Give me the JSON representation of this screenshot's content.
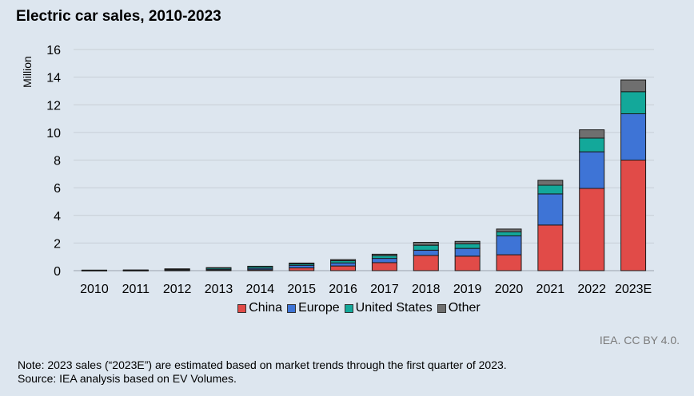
{
  "title": "Electric car sales, 2010-2023",
  "credit": "IEA. CC BY 4.0.",
  "note": "Note: 2023 sales (“2023E”) are estimated based on market trends through the first quarter of 2023.",
  "source": "Source: IEA analysis based on EV Volumes.",
  "colors": {
    "China": "#e14b48",
    "Europe": "#3e74d6",
    "United States": "#13a89a",
    "Other": "#6f6f6f",
    "grid": "#c7ced6"
  },
  "chart_data": {
    "type": "bar",
    "stacked": true,
    "ylabel": "Million",
    "ylim": [
      0,
      16
    ],
    "yticks": [
      0,
      2,
      4,
      6,
      8,
      10,
      12,
      14,
      16
    ],
    "grid": true,
    "legend_position": "bottom",
    "categories": [
      "2010",
      "2011",
      "2012",
      "2013",
      "2014",
      "2015",
      "2016",
      "2017",
      "2018",
      "2019",
      "2020",
      "2021",
      "2022",
      "2023E"
    ],
    "series": [
      {
        "name": "China",
        "values": [
          0.01,
          0.01,
          0.02,
          0.03,
          0.07,
          0.2,
          0.34,
          0.58,
          1.1,
          1.05,
          1.15,
          3.3,
          5.95,
          8.0
        ]
      },
      {
        "name": "Europe",
        "values": [
          0.01,
          0.01,
          0.06,
          0.07,
          0.1,
          0.19,
          0.22,
          0.31,
          0.38,
          0.56,
          1.37,
          2.25,
          2.65,
          3.35
        ]
      },
      {
        "name": "United States",
        "values": [
          0.01,
          0.02,
          0.04,
          0.1,
          0.12,
          0.11,
          0.16,
          0.2,
          0.36,
          0.33,
          0.29,
          0.63,
          0.99,
          1.6
        ]
      },
      {
        "name": "Other",
        "values": [
          0.01,
          0.01,
          0.01,
          0.02,
          0.03,
          0.05,
          0.08,
          0.1,
          0.21,
          0.18,
          0.2,
          0.36,
          0.6,
          0.85
        ]
      }
    ]
  }
}
